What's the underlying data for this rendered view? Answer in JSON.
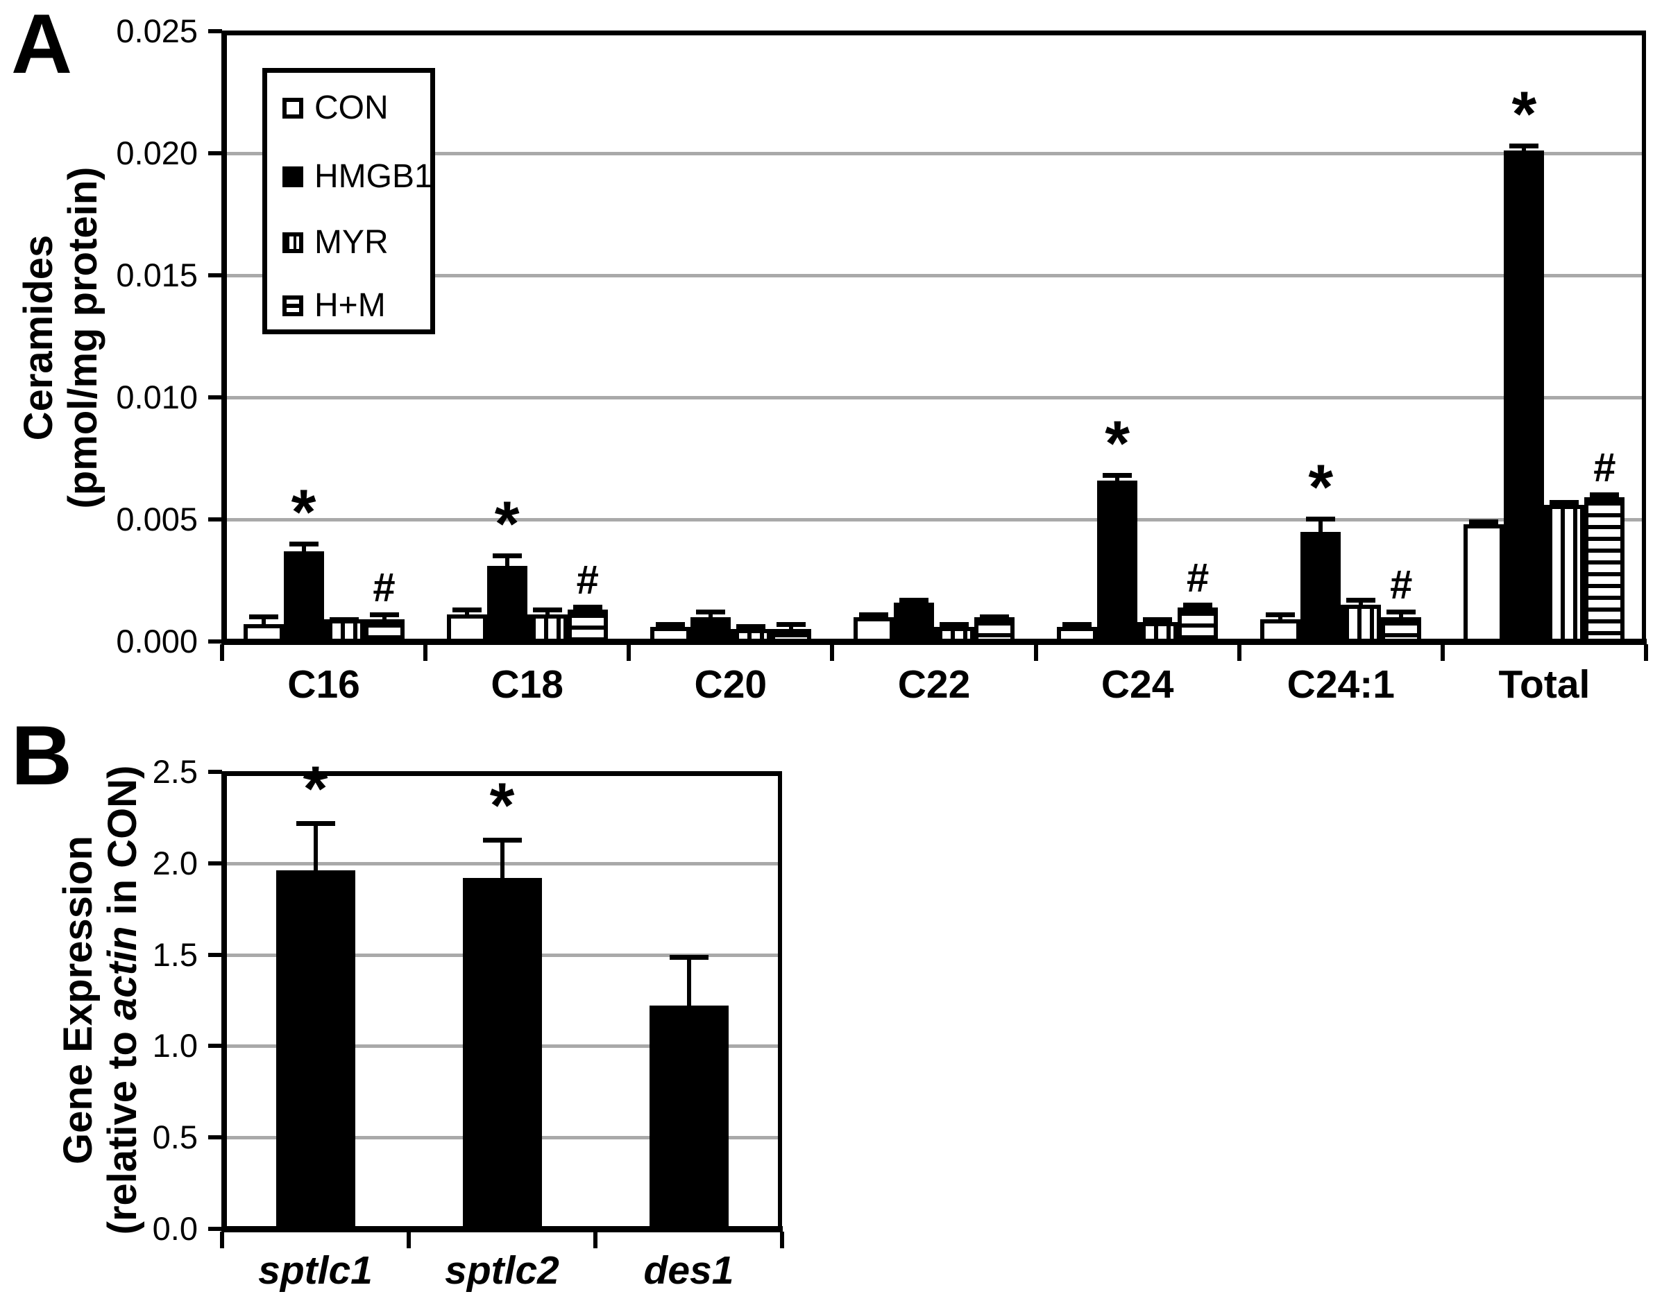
{
  "figure": {
    "panels": [
      {
        "letter": "A"
      },
      {
        "letter": "B"
      }
    ]
  },
  "chart_data": [
    {
      "type": "bar",
      "panel": "A",
      "title": "",
      "categories": [
        "C16",
        "C18",
        "C20",
        "C22",
        "C24",
        "C24:1",
        "Total"
      ],
      "series": [
        {
          "name": "CON",
          "pattern": "open",
          "values": [
            0.0007,
            0.0011,
            0.0006,
            0.001,
            0.0006,
            0.0009,
            0.0048
          ],
          "errors": [
            0.0004,
            0.0003,
            0.0002,
            0.0002,
            0.0002,
            0.0003,
            0.0002
          ],
          "sig": [
            "",
            "",
            "",
            "",
            "",
            "",
            ""
          ]
        },
        {
          "name": "HMGB1",
          "pattern": "solid",
          "values": [
            0.0037,
            0.0031,
            0.001,
            0.0016,
            0.0066,
            0.0045,
            0.0201
          ],
          "errors": [
            0.0004,
            0.0005,
            0.0003,
            0.0002,
            0.0003,
            0.0006,
            0.0003
          ],
          "sig": [
            "*",
            "*",
            "",
            "",
            "*",
            "*",
            "*"
          ]
        },
        {
          "name": "MYR",
          "pattern": "vertical-stripes",
          "values": [
            0.0009,
            0.0011,
            0.0005,
            0.0006,
            0.0008,
            0.0015,
            0.0056
          ],
          "errors": [
            0.0001,
            0.0003,
            0.0002,
            0.0002,
            0.0002,
            0.0003,
            0.0002
          ],
          "sig": [
            "",
            "",
            "",
            "",
            "",
            "",
            ""
          ]
        },
        {
          "name": "H+M",
          "pattern": "horizontal-stripes",
          "values": [
            0.0009,
            0.0013,
            0.0005,
            0.001,
            0.0014,
            0.001,
            0.0059
          ],
          "errors": [
            0.0003,
            0.0002,
            0.0003,
            0.0001,
            0.0002,
            0.0003,
            0.0002
          ],
          "sig": [
            "#",
            "#",
            "",
            "",
            "#",
            "#",
            "#"
          ]
        }
      ],
      "ylabel_lines": [
        "Ceramides",
        "(pmol/mg protein)"
      ],
      "xlabel": "",
      "yticks": [
        "0.000",
        "0.005",
        "0.010",
        "0.015",
        "0.020",
        "0.025"
      ],
      "ylim": [
        0,
        0.025
      ],
      "grid": true,
      "legend_position": "upper-left-inside"
    },
    {
      "type": "bar",
      "panel": "B",
      "title": "",
      "categories": [
        "sptlc1",
        "sptlc2",
        "des1"
      ],
      "series": [
        {
          "name": "HMGB1",
          "pattern": "solid",
          "values": [
            1.96,
            1.92,
            1.22
          ],
          "errors": [
            0.27,
            0.22,
            0.28
          ],
          "sig": [
            "*",
            "*",
            ""
          ]
        }
      ],
      "ylabel_line1": "Gene Expression",
      "ylabel_line2_pre": "(relative to ",
      "ylabel_line2_italic": "actin",
      "ylabel_line2_post": " in CON)",
      "xlabel": "",
      "yticks": [
        "0.0",
        "0.5",
        "1.0",
        "1.5",
        "2.0",
        "2.5"
      ],
      "ylim": [
        0,
        2.5
      ],
      "grid": true,
      "legend_position": "none"
    }
  ]
}
